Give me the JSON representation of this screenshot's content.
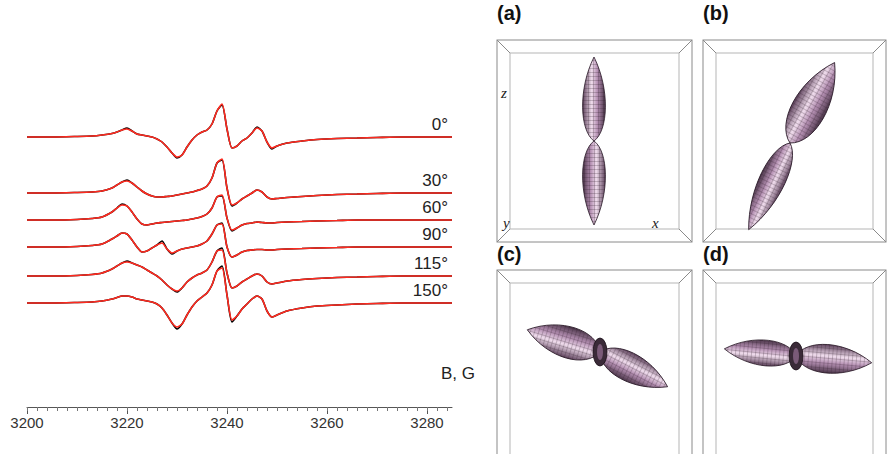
{
  "chart_data": {
    "type": "line",
    "xlabel": "B, G",
    "x": [
      3200,
      3205,
      3210,
      3213,
      3215,
      3217,
      3218,
      3219,
      3220,
      3221,
      3222,
      3223,
      3224,
      3225,
      3226,
      3227,
      3228,
      3229,
      3230,
      3231,
      3232,
      3233,
      3234,
      3235,
      3236,
      3237,
      3238,
      3239,
      3240,
      3241,
      3242,
      3243,
      3244,
      3245,
      3246,
      3247,
      3248,
      3249,
      3250,
      3252,
      3255,
      3258,
      3262,
      3266,
      3270,
      3275,
      3280,
      3285
    ],
    "series": [
      {
        "name": "0°",
        "color": "#000000",
        "values": [
          27,
          27,
          27.05,
          27.1,
          27.2,
          27.35,
          27.5,
          27.7,
          27.9,
          27.6,
          27.3,
          27.2,
          27.1,
          27,
          26.8,
          26.5,
          26,
          25.4,
          24.9,
          25.2,
          26,
          26.7,
          27.2,
          27.5,
          27.7,
          28.3,
          29.6,
          30.2,
          27.8,
          25.9,
          26.1,
          26.6,
          26.9,
          27.4,
          28,
          27.6,
          26.5,
          25.8,
          26.1,
          26.4,
          26.6,
          26.75,
          26.85,
          26.9,
          26.95,
          27,
          27,
          27
        ]
      },
      {
        "name": "0°",
        "color": "#ff2a1f",
        "values": [
          27,
          27,
          27.05,
          27.1,
          27.2,
          27.35,
          27.5,
          27.7,
          27.8,
          27.6,
          27.3,
          27.2,
          27.1,
          27,
          26.8,
          26.5,
          26,
          25.4,
          25,
          25.2,
          26,
          26.7,
          27.2,
          27.5,
          27.7,
          28.3,
          29.6,
          30.3,
          27.8,
          25.9,
          26.1,
          26.6,
          26.9,
          27.4,
          27.9,
          27.6,
          26.5,
          25.9,
          26.1,
          26.4,
          26.6,
          26.75,
          26.85,
          26.9,
          26.95,
          27,
          27,
          27
        ]
      },
      {
        "name": "30°",
        "color": "#000000",
        "values": [
          21.4,
          21.4,
          21.45,
          21.5,
          21.6,
          21.9,
          22.2,
          22.5,
          22.7,
          22.4,
          22,
          21.6,
          21.3,
          21.1,
          21,
          21,
          21.05,
          21.1,
          21.2,
          21.3,
          21.4,
          21.5,
          21.65,
          21.8,
          22.1,
          22.9,
          24.4,
          24.7,
          21.9,
          20.1,
          20.4,
          20.8,
          21.1,
          21.4,
          21.7,
          21.5,
          21,
          20.8,
          20.85,
          20.95,
          21.05,
          21.15,
          21.25,
          21.3,
          21.35,
          21.4,
          21.4,
          21.4
        ]
      },
      {
        "name": "30°",
        "color": "#ff2a1f",
        "values": [
          21.4,
          21.4,
          21.45,
          21.5,
          21.6,
          21.9,
          22.2,
          22.5,
          22.6,
          22.4,
          22,
          21.6,
          21.3,
          21.1,
          21,
          21,
          21.05,
          21.1,
          21.2,
          21.3,
          21.4,
          21.5,
          21.65,
          21.8,
          22.1,
          22.9,
          24.4,
          24.8,
          21.9,
          20.2,
          20.4,
          20.8,
          21.1,
          21.4,
          21.7,
          21.5,
          21,
          20.8,
          20.85,
          20.95,
          21.05,
          21.15,
          21.25,
          21.3,
          21.35,
          21.4,
          21.4,
          21.4
        ]
      },
      {
        "name": "60°",
        "color": "#000000",
        "values": [
          18.7,
          18.7,
          18.75,
          18.85,
          19,
          19.5,
          19.9,
          20.3,
          20.1,
          19.5,
          18.8,
          18.3,
          18.2,
          18.3,
          18.4,
          18.45,
          18.5,
          18.55,
          18.6,
          18.65,
          18.7,
          18.8,
          18.9,
          19.05,
          19.3,
          19.9,
          21,
          21.1,
          18.9,
          17.6,
          17.9,
          18.2,
          18.35,
          18.4,
          18.5,
          18.45,
          18.4,
          18.4,
          18.45,
          18.5,
          18.55,
          18.6,
          18.65,
          18.7,
          18.7,
          18.7,
          18.7,
          18.7
        ]
      },
      {
        "name": "60°",
        "color": "#ff2a1f",
        "values": [
          18.7,
          18.7,
          18.75,
          18.85,
          19,
          19.5,
          19.9,
          20.2,
          20.1,
          19.5,
          18.8,
          18.3,
          18.2,
          18.3,
          18.4,
          18.45,
          18.5,
          18.55,
          18.6,
          18.65,
          18.7,
          18.8,
          18.9,
          19.05,
          19.3,
          19.9,
          21,
          21.2,
          18.9,
          17.7,
          17.9,
          18.2,
          18.35,
          18.4,
          18.5,
          18.45,
          18.4,
          18.4,
          18.45,
          18.5,
          18.55,
          18.6,
          18.65,
          18.7,
          18.7,
          18.7,
          18.7,
          18.7
        ]
      },
      {
        "name": "90°",
        "color": "#000000",
        "values": [
          16,
          16,
          16.05,
          16.15,
          16.3,
          16.8,
          17.1,
          17.4,
          17.3,
          16.7,
          16,
          15.5,
          15.6,
          15.9,
          16.2,
          16.6,
          15.8,
          15.3,
          15.6,
          15.8,
          15.9,
          16,
          16.1,
          16.3,
          16.6,
          17.3,
          18.2,
          18.4,
          16,
          15,
          15.2,
          15.5,
          15.65,
          15.7,
          15.75,
          15.75,
          15.7,
          15.7,
          15.75,
          15.8,
          15.85,
          15.9,
          15.95,
          16,
          16,
          16,
          16,
          16
        ]
      },
      {
        "name": "90°",
        "color": "#ff2a1f",
        "values": [
          16,
          16,
          16.05,
          16.15,
          16.3,
          16.8,
          17.1,
          17.4,
          17.3,
          16.7,
          16,
          15.5,
          15.6,
          15.9,
          16.2,
          16.4,
          15.8,
          15.4,
          15.6,
          15.8,
          15.9,
          16,
          16.1,
          16.3,
          16.6,
          17.3,
          18.2,
          18.3,
          16,
          15,
          15.2,
          15.5,
          15.65,
          15.7,
          15.75,
          15.75,
          15.7,
          15.7,
          15.75,
          15.8,
          15.85,
          15.9,
          15.95,
          16,
          16,
          16,
          16,
          16
        ]
      },
      {
        "name": "115°",
        "color": "#000000",
        "values": [
          13.1,
          13.1,
          13.15,
          13.25,
          13.4,
          13.8,
          14.1,
          14.4,
          14.6,
          14.4,
          14.2,
          14,
          13.7,
          13.4,
          13.1,
          12.7,
          12.2,
          11.8,
          11.5,
          11.9,
          12.5,
          12.9,
          13.2,
          13.4,
          13.7,
          14.5,
          15.6,
          15.9,
          13.4,
          11.9,
          12.1,
          12.5,
          12.8,
          13.1,
          13.3,
          13.1,
          12.5,
          12.3,
          12.4,
          12.6,
          12.75,
          12.85,
          12.95,
          13,
          13.05,
          13.1,
          13.1,
          13.1
        ]
      },
      {
        "name": "115°",
        "color": "#ff2a1f",
        "values": [
          13.1,
          13.1,
          13.15,
          13.25,
          13.4,
          13.8,
          14.1,
          14.4,
          14.5,
          14.4,
          14.2,
          14,
          13.7,
          13.4,
          13.1,
          12.7,
          12.2,
          11.8,
          11.6,
          11.9,
          12.5,
          12.9,
          13.2,
          13.4,
          13.7,
          14.5,
          15.6,
          15.7,
          13.4,
          11.9,
          12.1,
          12.5,
          12.8,
          13.1,
          13.3,
          13.1,
          12.5,
          12.3,
          12.4,
          12.6,
          12.75,
          12.85,
          12.95,
          13,
          13.05,
          13.1,
          13.1,
          13.1
        ]
      },
      {
        "name": "150°",
        "color": "#000000",
        "values": [
          10.4,
          10.4,
          10.45,
          10.5,
          10.6,
          10.8,
          10.95,
          11.1,
          11.1,
          11,
          10.8,
          10.7,
          10.6,
          10.5,
          10.3,
          9.9,
          9.2,
          8.4,
          7.8,
          8.3,
          9.2,
          10,
          10.6,
          11,
          11.4,
          12.2,
          13.6,
          14.1,
          11.2,
          8.5,
          9.1,
          9.8,
          10.3,
          10.8,
          11.1,
          10.8,
          9.6,
          9,
          9.2,
          9.6,
          9.9,
          10.1,
          10.2,
          10.3,
          10.35,
          10.4,
          10.4,
          10.4
        ]
      },
      {
        "name": "150°",
        "color": "#ff2a1f",
        "values": [
          10.4,
          10.4,
          10.45,
          10.5,
          10.6,
          10.8,
          10.95,
          11.1,
          11.1,
          11,
          10.8,
          10.7,
          10.6,
          10.5,
          10.3,
          9.9,
          9.2,
          8.4,
          8,
          8.3,
          9.2,
          10,
          10.6,
          11,
          11.4,
          12.2,
          13.6,
          13.9,
          11.2,
          8.7,
          9.1,
          9.8,
          10.3,
          10.8,
          11.1,
          10.8,
          9.6,
          9,
          9.2,
          9.6,
          9.9,
          10.1,
          10.2,
          10.3,
          10.35,
          10.4,
          10.4,
          10.4
        ]
      }
    ],
    "xlim": [
      3200,
      3285
    ],
    "xticks": [
      3200,
      3220,
      3240,
      3260,
      3280
    ],
    "ylim": [
      0,
      32
    ],
    "tick_labels": "x",
    "grid": false,
    "marker": "none",
    "line_style": "solid"
  },
  "panels": [
    {
      "label": "(a)",
      "axes": {
        "z": "z",
        "y": "y",
        "x": "x"
      }
    },
    {
      "label": "(b)"
    },
    {
      "label": "(c)"
    },
    {
      "label": "(d)"
    }
  ]
}
